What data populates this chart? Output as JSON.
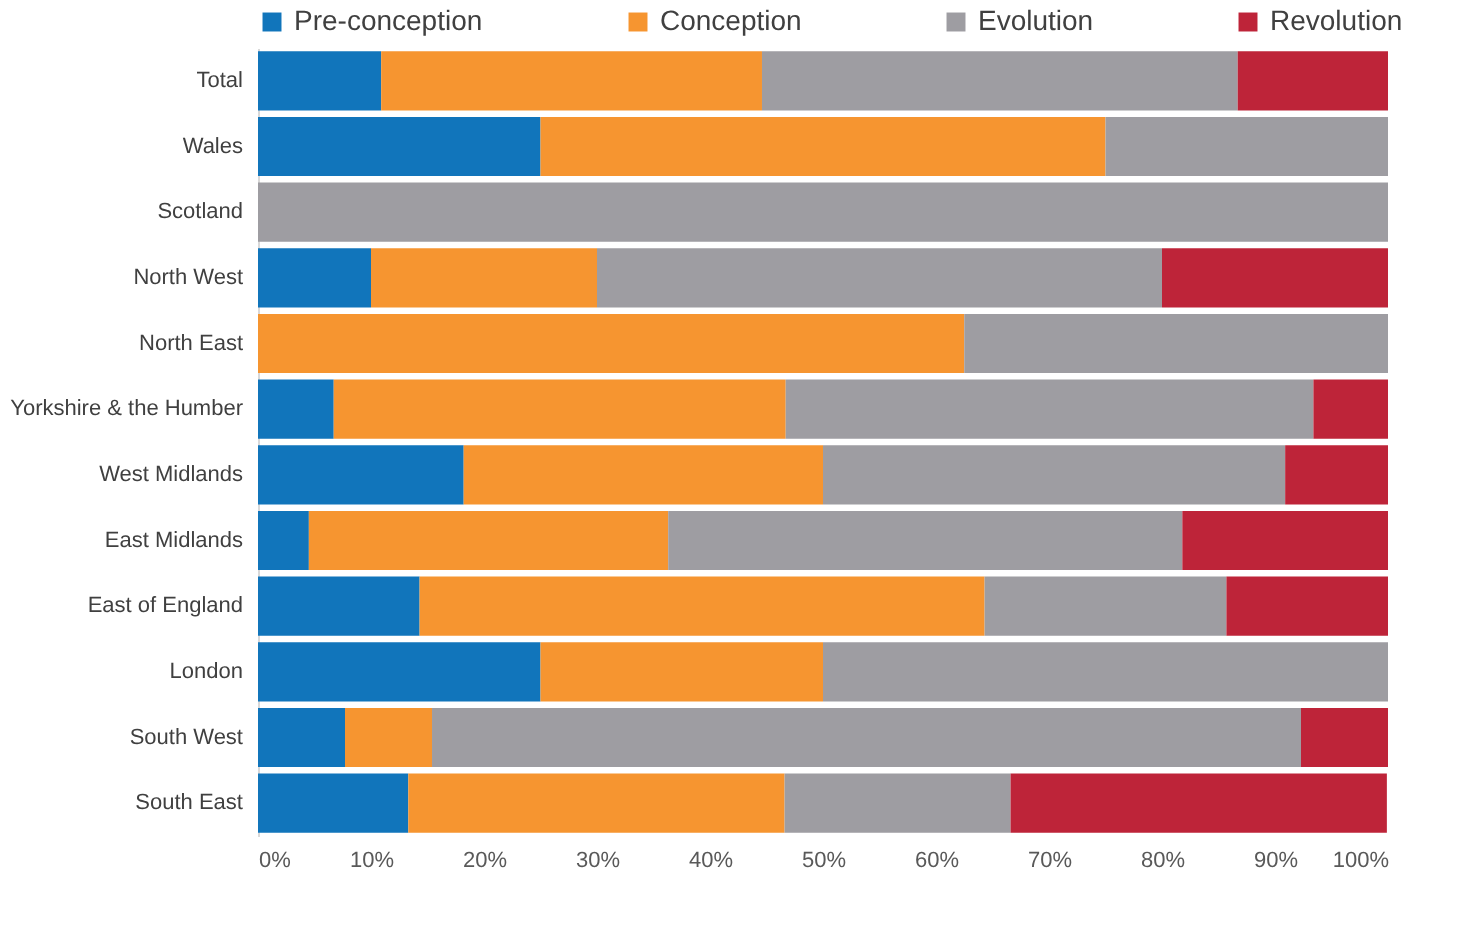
{
  "chart_data": {
    "type": "bar",
    "orientation": "horizontal",
    "stacked": true,
    "categories": [
      "Total",
      "Wales",
      "Scotland",
      "North West",
      "North East",
      "Yorkshire & the Humber",
      "West Midlands",
      "East Midlands",
      "East of England",
      "London",
      "South West",
      "South East"
    ],
    "series": [
      {
        "name": "Pre-conception",
        "color": "#1175bb",
        "values": [
          10.9,
          25,
          0,
          10,
          0,
          6.7,
          18.2,
          4.5,
          14.3,
          25,
          7.7,
          13.3
        ]
      },
      {
        "name": "Conception",
        "color": "#f69530",
        "values": [
          33.7,
          50,
          0,
          20,
          62.5,
          40,
          31.8,
          31.8,
          50,
          25,
          7.7,
          33.3
        ]
      },
      {
        "name": "Evolution",
        "color": "#9e9da2",
        "values": [
          42.1,
          25,
          100,
          50,
          37.5,
          46.7,
          40.9,
          45.5,
          21.4,
          50,
          76.9,
          20
        ]
      },
      {
        "name": "Revolution",
        "color": "#be2439",
        "values": [
          13.3,
          0,
          0,
          20,
          0,
          6.6,
          9.1,
          18.2,
          14.3,
          0,
          7.7,
          33.3
        ]
      }
    ],
    "xlim": [
      0,
      100
    ],
    "xticks": [
      {
        "value": 0,
        "label": "0%"
      },
      {
        "value": 10,
        "label": "10%"
      },
      {
        "value": 20,
        "label": "20%"
      },
      {
        "value": 30,
        "label": "30%"
      },
      {
        "value": 40,
        "label": "40%"
      },
      {
        "value": 50,
        "label": "50%"
      },
      {
        "value": 60,
        "label": "60%"
      },
      {
        "value": 70,
        "label": "70%"
      },
      {
        "value": 80,
        "label": "80%"
      },
      {
        "value": 90,
        "label": "90%"
      },
      {
        "value": 100,
        "label": "100%"
      }
    ],
    "grid": false,
    "legend": "top"
  }
}
